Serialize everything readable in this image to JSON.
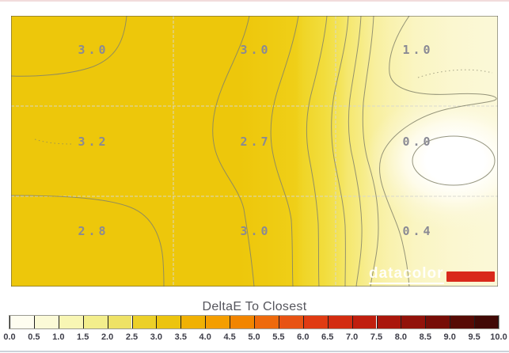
{
  "page": {
    "background": "#ffffff",
    "top_edge_color": "#f2dcdc",
    "bottom_edge_color": "#ccd3da"
  },
  "chart_data": {
    "type": "heatmap",
    "subtype": "filled-contour-map",
    "title": "DeltaE To Closest",
    "grid": {
      "rows": 3,
      "cols": 3
    },
    "values": [
      [
        3.0,
        3.0,
        1.0
      ],
      [
        3.2,
        2.7,
        0.0
      ],
      [
        2.8,
        3.0,
        0.4
      ]
    ],
    "value_labels": [
      [
        "3.0",
        "3.0",
        "1.0"
      ],
      [
        "3.2",
        "2.7",
        "0.0"
      ],
      [
        "2.8",
        "3.0",
        "0.4"
      ]
    ],
    "contour_interval": 0.5,
    "legend_position": "bottom",
    "colorbar": {
      "min": 0.0,
      "max": 10.0,
      "step": 0.5,
      "tick_labels": [
        "0.0",
        "0.5",
        "1.0",
        "1.5",
        "2.0",
        "2.5",
        "3.0",
        "3.5",
        "4.0",
        "4.5",
        "5.0",
        "5.5",
        "6.0",
        "6.5",
        "7.0",
        "7.5",
        "8.0",
        "8.5",
        "9.0",
        "9.5",
        "10.0"
      ],
      "segment_colors": [
        "#fefdf0",
        "#fbfad7",
        "#f8f6b4",
        "#f3ee8c",
        "#eee266",
        "#ecd028",
        "#ecc40e",
        "#f0b103",
        "#f49e00",
        "#f28500",
        "#ee6a0c",
        "#e85313",
        "#e03b12",
        "#d32c10",
        "#c01f0e",
        "#aa170c",
        "#92120a",
        "#770d07",
        "#570b05",
        "#410905"
      ]
    }
  },
  "style_colors": {
    "contour_line": "#82826a",
    "grid_line": "#d8d8d0",
    "value_label": "#8a8a94",
    "title": "#55555c",
    "tick_label": "#3e3e49",
    "plot_border": "#4a4a44",
    "logo_red": "#d9291b"
  },
  "logo": {
    "text": "datacolor"
  }
}
